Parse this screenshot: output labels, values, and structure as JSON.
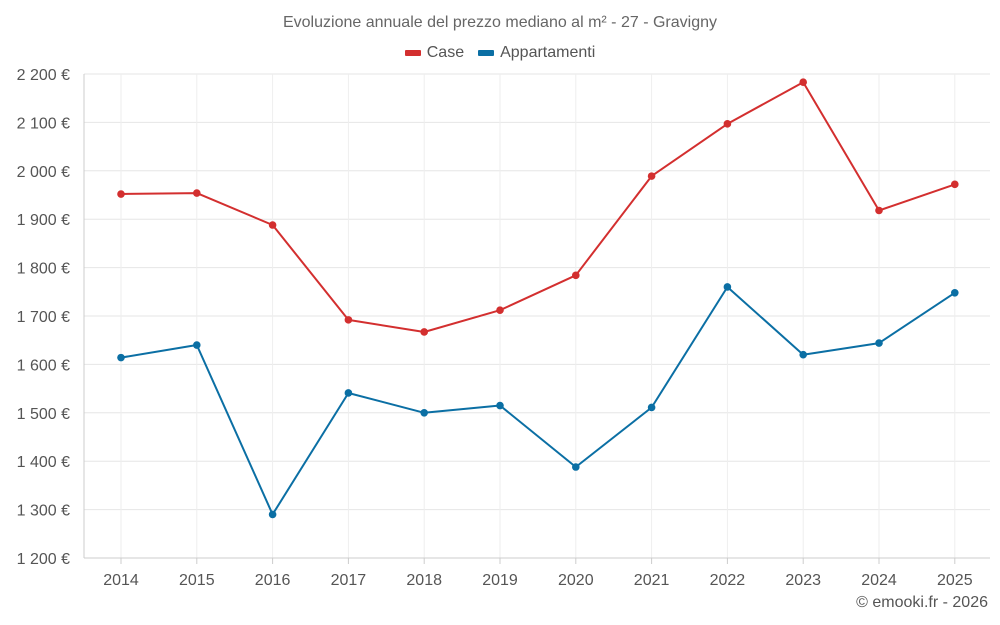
{
  "chart_data": {
    "type": "line",
    "title": "Evoluzione annuale del prezzo mediano al m² - 27 - Gravigny",
    "xlabel": "",
    "ylabel": "",
    "categories": [
      "2014",
      "2015",
      "2016",
      "2017",
      "2018",
      "2019",
      "2020",
      "2021",
      "2022",
      "2023",
      "2024",
      "2025"
    ],
    "ylim": [
      1200,
      2200
    ],
    "yticks": [
      1200,
      1300,
      1400,
      1500,
      1600,
      1700,
      1800,
      1900,
      2000,
      2100,
      2200
    ],
    "ytick_labels": [
      "1 200 €",
      "1 300 €",
      "1 400 €",
      "1 500 €",
      "1 600 €",
      "1 700 €",
      "1 800 €",
      "1 900 €",
      "2 000 €",
      "2 100 €",
      "2 200 €"
    ],
    "grid": true,
    "legend_position": "top-center",
    "series": [
      {
        "name": "Case",
        "color": "#d32f2f",
        "values": [
          1952,
          1954,
          1888,
          1692,
          1667,
          1712,
          1784,
          1989,
          2097,
          2183,
          1918,
          1972
        ]
      },
      {
        "name": "Appartamenti",
        "color": "#0b6fa4",
        "values": [
          1614,
          1640,
          1290,
          1541,
          1500,
          1515,
          1388,
          1511,
          1760,
          1620,
          1644,
          1748
        ]
      }
    ]
  },
  "credit": "© emooki.fr - 2026"
}
